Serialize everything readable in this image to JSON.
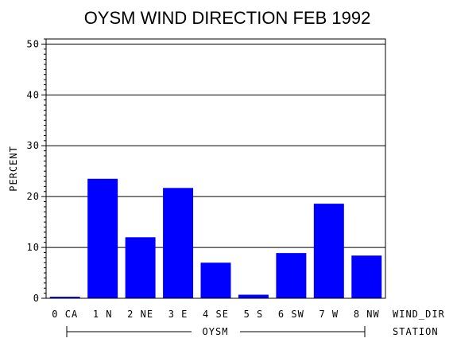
{
  "chart_data": {
    "type": "bar",
    "title": "OYSM WIND DIRECTION FEB 1992",
    "ylabel": "PERCENT",
    "xlabel": "WIND_DIR",
    "group_label": "OYSM",
    "group_axis_label": "STATION",
    "ylim": [
      0,
      51
    ],
    "yticks": [
      0,
      10,
      20,
      30,
      40,
      50
    ],
    "grid": true,
    "categories": [
      "0 CA",
      "1 N",
      "2 NE",
      "3 E",
      "4 SE",
      "5 S",
      "6 SW",
      "7 W",
      "8 NW"
    ],
    "values": [
      0.3,
      23.5,
      12.0,
      21.7,
      7.0,
      0.7,
      8.9,
      18.6,
      8.4
    ],
    "bar_color": "#0000ff"
  }
}
